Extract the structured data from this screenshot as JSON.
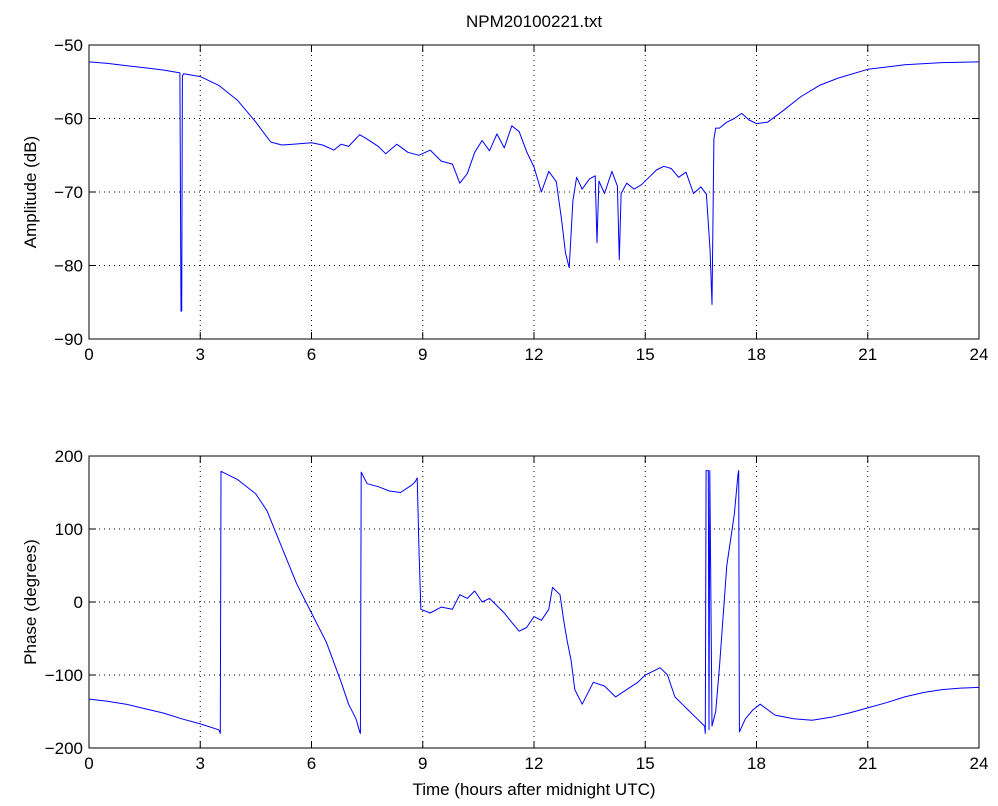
{
  "chart_data": [
    {
      "type": "line",
      "title": "NPM20100221.txt",
      "xlabel": "",
      "ylabel": "Amplitude (dB)",
      "xlim": [
        0,
        24
      ],
      "ylim": [
        -90,
        -50
      ],
      "xticks": [
        0,
        3,
        6,
        9,
        12,
        15,
        18,
        21,
        24
      ],
      "yticks": [
        -90,
        -80,
        -70,
        -60,
        -50
      ],
      "grid": true,
      "line_color": "#0000ff",
      "series": [
        {
          "x": [
            0,
            0.5,
            1,
            1.5,
            2,
            2.45,
            2.48,
            2.5,
            2.52,
            2.55,
            3,
            3.5,
            4,
            4.5,
            4.9,
            5.2,
            5.5,
            6,
            6.3,
            6.6,
            6.8,
            7,
            7.3,
            7.5,
            7.8,
            8,
            8.3,
            8.6,
            8.9,
            9.2,
            9.5,
            9.8,
            10,
            10.2,
            10.4,
            10.6,
            10.8,
            11,
            11.2,
            11.4,
            11.6,
            11.8,
            12,
            12.2,
            12.4,
            12.6,
            12.75,
            12.85,
            12.95,
            13.05,
            13.15,
            13.3,
            13.5,
            13.65,
            13.7,
            13.75,
            13.9,
            14.1,
            14.25,
            14.3,
            14.35,
            14.5,
            14.7,
            14.9,
            15.1,
            15.3,
            15.5,
            15.7,
            15.9,
            16.1,
            16.3,
            16.5,
            16.65,
            16.75,
            16.8,
            16.85,
            16.9,
            17,
            17.2,
            17.4,
            17.6,
            17.8,
            18,
            18.3,
            18.7,
            19.2,
            19.7,
            20.2,
            21,
            22,
            23,
            24
          ],
          "values": [
            -52.3,
            -52.5,
            -52.8,
            -53.1,
            -53.4,
            -53.8,
            -86.2,
            -86.2,
            -54.2,
            -53.9,
            -54.3,
            -55.5,
            -57.5,
            -60.5,
            -63.2,
            -63.6,
            -63.5,
            -63.3,
            -63.6,
            -64.3,
            -63.5,
            -63.8,
            -62.2,
            -62.8,
            -63.8,
            -64.8,
            -63.5,
            -64.6,
            -65.0,
            -64.3,
            -65.8,
            -66.2,
            -68.8,
            -67.5,
            -64.6,
            -63.0,
            -64.4,
            -62.1,
            -64.0,
            -61.0,
            -61.8,
            -64.5,
            -66.6,
            -70.0,
            -67.2,
            -68.6,
            -74.0,
            -78.3,
            -80.3,
            -71.2,
            -68.0,
            -69.6,
            -68.2,
            -67.8,
            -76.9,
            -68.5,
            -70.2,
            -67.2,
            -69.2,
            -79.2,
            -70.2,
            -68.8,
            -69.6,
            -69.0,
            -68.0,
            -67.0,
            -66.5,
            -66.8,
            -68.0,
            -67.3,
            -70.2,
            -69.3,
            -70.3,
            -78.0,
            -85.3,
            -62.8,
            -61.3,
            -61.3,
            -60.5,
            -60.0,
            -59.3,
            -60.2,
            -60.7,
            -60.5,
            -59.0,
            -57.0,
            -55.5,
            -54.5,
            -53.3,
            -52.7,
            -52.4,
            -52.3
          ]
        }
      ]
    },
    {
      "type": "line",
      "title": "",
      "xlabel": "Time (hours after midnight UTC)",
      "ylabel": "Phase (degrees)",
      "xlim": [
        0,
        24
      ],
      "ylim": [
        -200,
        200
      ],
      "xticks": [
        0,
        3,
        6,
        9,
        12,
        15,
        18,
        21,
        24
      ],
      "yticks": [
        -200,
        -100,
        0,
        100,
        200
      ],
      "grid": true,
      "line_color": "#0000ff",
      "series": [
        {
          "x": [
            0,
            0.5,
            1,
            1.5,
            2,
            2.5,
            3,
            3.5,
            3.54,
            3.56,
            4,
            4.5,
            4.8,
            5.2,
            5.6,
            6,
            6.4,
            6.8,
            7.0,
            7.2,
            7.3,
            7.32,
            7.34,
            7.5,
            7.8,
            8.1,
            8.4,
            8.7,
            8.8,
            8.85,
            8.9,
            8.95,
            9.2,
            9.5,
            9.8,
            10,
            10.2,
            10.4,
            10.6,
            10.8,
            11,
            11.2,
            11.4,
            11.6,
            11.8,
            12,
            12.2,
            12.4,
            12.5,
            12.7,
            12.8,
            12.85,
            12.9,
            13.0,
            13.1,
            13.3,
            13.6,
            13.9,
            14.2,
            14.5,
            14.8,
            15.0,
            15.2,
            15.4,
            15.6,
            15.8,
            16.0,
            16.2,
            16.4,
            16.6,
            16.62,
            16.64,
            16.7,
            16.72,
            16.74,
            16.8,
            16.9,
            17.0,
            17.2,
            17.4,
            17.5,
            17.52,
            17.54,
            17.7,
            17.9,
            18.1,
            18.5,
            19,
            19.5,
            20,
            20.5,
            21,
            21.5,
            22,
            22.5,
            23,
            23.5,
            24
          ],
          "values": [
            -133,
            -136,
            -140,
            -146,
            -152,
            -160,
            -167,
            -175,
            -180,
            179,
            168,
            148,
            125,
            75,
            25,
            -15,
            -55,
            -110,
            -140,
            -160,
            -178,
            -180,
            178,
            162,
            158,
            152,
            150,
            160,
            165,
            170,
            70,
            -10,
            -15,
            -7,
            -10,
            10,
            5,
            15,
            0,
            5,
            -5,
            -15,
            -28,
            -40,
            -35,
            -20,
            -25,
            -10,
            20,
            10,
            -25,
            -40,
            -55,
            -80,
            -120,
            -140,
            -110,
            -115,
            -130,
            -120,
            -110,
            -100,
            -95,
            -90,
            -100,
            -130,
            -140,
            -150,
            -160,
            -170,
            -180,
            180,
            180,
            -175,
            180,
            -170,
            -150,
            -90,
            50,
            120,
            175,
            180,
            -178,
            -160,
            -148,
            -140,
            -155,
            -160,
            -162,
            -158,
            -152,
            -145,
            -138,
            -130,
            -124,
            -120,
            -118,
            -117
          ]
        }
      ]
    }
  ]
}
